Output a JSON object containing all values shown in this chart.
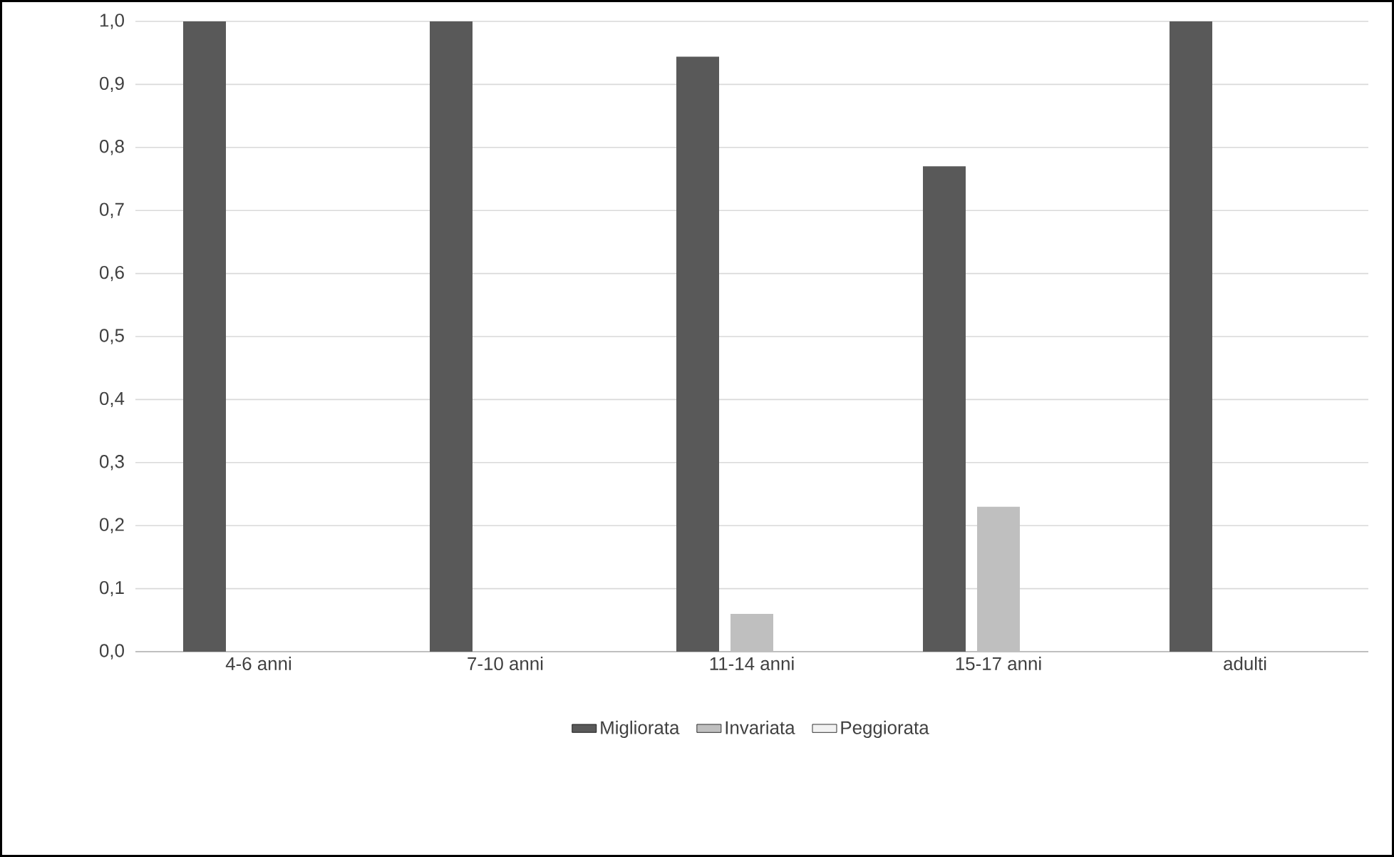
{
  "chart_data": {
    "type": "bar",
    "categories": [
      "4-6 anni",
      "7-10 anni",
      "11-14 anni",
      "15-17 anni",
      "adulti"
    ],
    "series": [
      {
        "name": "Migliorata",
        "color": "#595959",
        "values": [
          1.0,
          1.0,
          0.944,
          0.77,
          1.0
        ]
      },
      {
        "name": "Invariata",
        "color": "#bfbfbf",
        "values": [
          0,
          0,
          0.06,
          0.23,
          0
        ]
      },
      {
        "name": "Peggiorata",
        "color": "#f2f2f2",
        "values": [
          0,
          0,
          0,
          0,
          0
        ]
      }
    ],
    "ylim": [
      0,
      1.0
    ],
    "yticks": [
      {
        "value": 0,
        "label": "0,0"
      },
      {
        "value": 0.1,
        "label": "0,1"
      },
      {
        "value": 0.2,
        "label": "0,2"
      },
      {
        "value": 0.3,
        "label": "0,3"
      },
      {
        "value": 0.4,
        "label": "0,4"
      },
      {
        "value": 0.5,
        "label": "0,5"
      },
      {
        "value": 0.6,
        "label": "0,6"
      },
      {
        "value": 0.7,
        "label": "0,7"
      },
      {
        "value": 0.8,
        "label": "0,8"
      },
      {
        "value": 0.9,
        "label": "0,9"
      },
      {
        "value": 1.0,
        "label": "1,0"
      }
    ],
    "grid": "y",
    "legend": "bottom"
  }
}
